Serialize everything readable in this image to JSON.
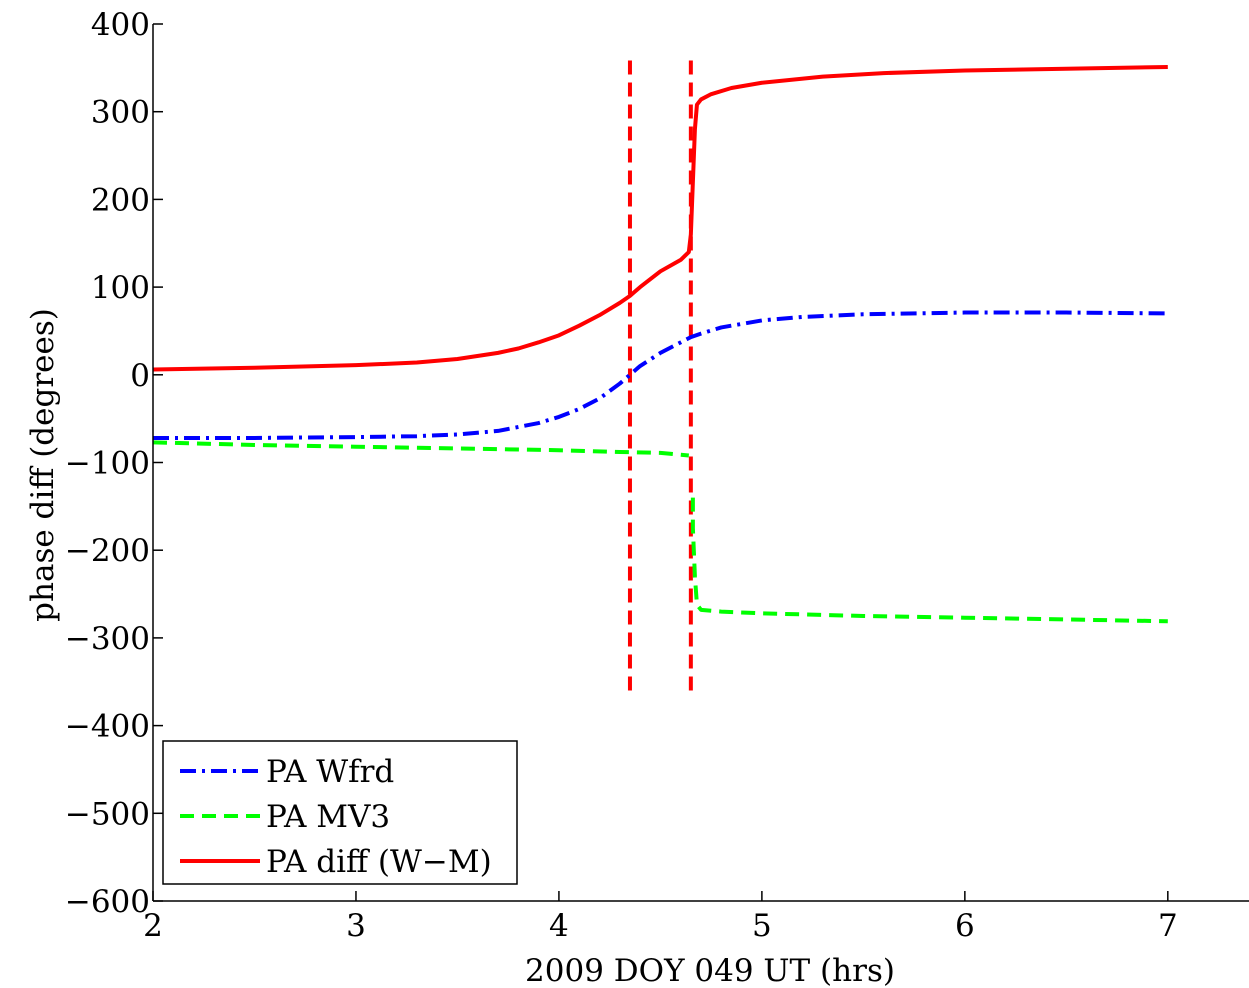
{
  "chart_data": {
    "type": "line",
    "xlabel": "2009 DOY 049 UT (hrs)",
    "ylabel": "phase diff (degrees)",
    "xlim": [
      2,
      7.4
    ],
    "ylim": [
      -600,
      400
    ],
    "x_ticks": [
      2,
      3,
      4,
      5,
      6,
      7
    ],
    "y_ticks": [
      -600,
      -500,
      -400,
      -300,
      -200,
      -100,
      0,
      100,
      200,
      300,
      400
    ],
    "x_tick_labels": [
      "2",
      "3",
      "4",
      "5",
      "6",
      "7"
    ],
    "y_tick_labels": [
      "−600",
      "−500",
      "−400",
      "−300",
      "−200",
      "−100",
      "0",
      "100",
      "200",
      "300",
      "400"
    ],
    "grid": false,
    "legend_position": "bottom-left",
    "series": [
      {
        "name": "PA Wfrd",
        "color": "#0000ff",
        "style": "dash-dot",
        "x": [
          2.0,
          2.5,
          3.0,
          3.3,
          3.5,
          3.7,
          3.9,
          4.0,
          4.1,
          4.2,
          4.3,
          4.35,
          4.4,
          4.5,
          4.6,
          4.65,
          4.7,
          4.8,
          5.0,
          5.2,
          5.5,
          6.0,
          6.5,
          7.0
        ],
        "y": [
          -72,
          -72,
          -71,
          -70,
          -68,
          -64,
          -55,
          -48,
          -39,
          -27,
          -10,
          0,
          10,
          25,
          37,
          43,
          47,
          54,
          62,
          66,
          69,
          71,
          71,
          70
        ]
      },
      {
        "name": "PA MV3",
        "color": "#00ff00",
        "style": "dashed",
        "segments": [
          {
            "x": [
              2.0,
              2.5,
              3.0,
              3.5,
              4.0,
              4.3,
              4.5,
              4.64
            ],
            "y": [
              -77,
              -80,
              -82,
              -84,
              -86,
              -88,
              -89,
              -92
            ]
          },
          {
            "x": [
              4.66,
              4.66,
              4.67,
              4.68,
              4.7,
              4.8,
              5.0,
              5.5,
              6.0,
              6.5,
              7.0
            ],
            "y": [
              -140,
              -175,
              -230,
              -262,
              -268,
              -270,
              -272,
              -275,
              -277,
              -279,
              -281
            ]
          }
        ]
      },
      {
        "name": "PA diff (W−M)",
        "color": "#ff0000",
        "style": "solid",
        "x": [
          2.0,
          2.5,
          3.0,
          3.3,
          3.5,
          3.7,
          3.8,
          3.9,
          4.0,
          4.1,
          4.2,
          4.3,
          4.35,
          4.4,
          4.5,
          4.6,
          4.64,
          4.65,
          4.66,
          4.67,
          4.68,
          4.7,
          4.75,
          4.85,
          5.0,
          5.3,
          5.6,
          6.0,
          6.5,
          7.0
        ],
        "y": [
          6,
          8,
          11,
          14,
          18,
          25,
          30,
          37,
          45,
          56,
          68,
          82,
          90,
          100,
          118,
          131,
          140,
          160,
          220,
          280,
          308,
          314,
          320,
          327,
          333,
          340,
          344,
          347,
          349,
          351
        ]
      }
    ],
    "vertical_markers": [
      {
        "x": 4.35,
        "y_range": [
          -360,
          360
        ],
        "color": "#ff0000",
        "style": "dashed"
      },
      {
        "x": 4.65,
        "y_range": [
          -360,
          360
        ],
        "color": "#ff0000",
        "style": "dashed"
      }
    ]
  }
}
